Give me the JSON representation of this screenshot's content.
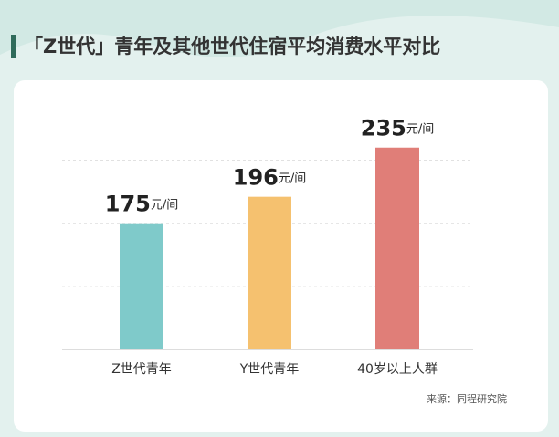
{
  "chart_data": {
    "type": "bar",
    "title": "「Z世代」青年及其他世代住宿平均消费水平对比",
    "categories": [
      "Z世代青年",
      "Y世代青年",
      "40岁以上人群"
    ],
    "values": [
      175,
      196,
      235
    ],
    "value_labels": [
      "175元/间",
      "196元/间",
      "235元/间"
    ],
    "colors": [
      "#7fcaca",
      "#f5c16f",
      "#e07e78"
    ],
    "ylim": [
      75,
      250
    ],
    "yticks": [
      75,
      125,
      175,
      225
    ],
    "grid": true,
    "source": "来源：同程研究院"
  }
}
